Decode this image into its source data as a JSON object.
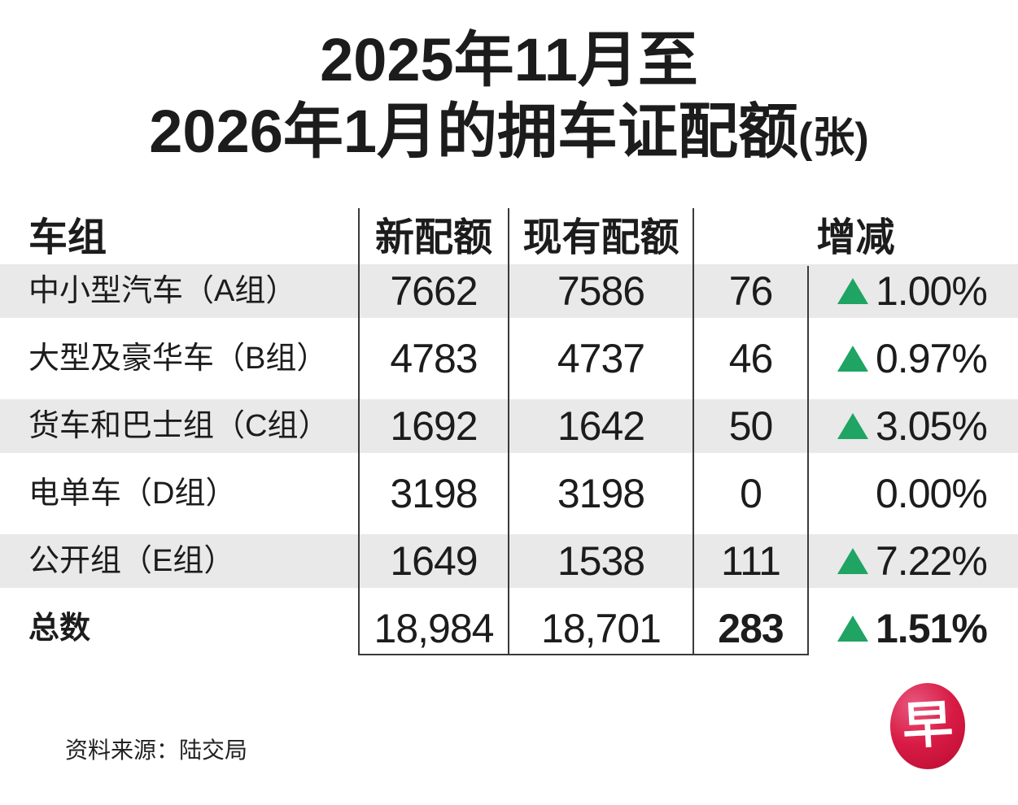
{
  "title": {
    "line1": "2025年11月至",
    "line2_main": "2026年1月的拥车证配额",
    "line2_suffix": "(张)"
  },
  "table": {
    "headers": {
      "group": "车组",
      "new_quota": "新配额",
      "existing_quota": "现有配额",
      "change": "增减"
    },
    "rows": [
      {
        "label": "中小型汽车（A组）",
        "new": "7662",
        "existing": "7586",
        "diff": "76",
        "pct": "1.00%",
        "up": true
      },
      {
        "label": "大型及豪华车（B组）",
        "new": "4783",
        "existing": "4737",
        "diff": "46",
        "pct": "0.97%",
        "up": true
      },
      {
        "label": "货车和巴士组（C组）",
        "new": "1692",
        "existing": "1642",
        "diff": "50",
        "pct": "3.05%",
        "up": true
      },
      {
        "label": "电单车（D组）",
        "new": "3198",
        "existing": "3198",
        "diff": "0",
        "pct": "0.00%",
        "up": false
      },
      {
        "label": "公开组（E组）",
        "new": "1649",
        "existing": "1538",
        "diff": "111",
        "pct": "7.22%",
        "up": true
      },
      {
        "label": "总数",
        "new": "18,984",
        "existing": "18,701",
        "diff": "283",
        "pct": "1.51%",
        "up": true
      }
    ]
  },
  "footer": {
    "source": "资料来源：陆交局"
  },
  "logo": {
    "char": "早"
  },
  "colors": {
    "text": "#1c1c1c",
    "accent_green": "#1fa463",
    "logo_red": "#cf1237",
    "row_stripe": "#e9e9e9",
    "divider": "#3a3a3a"
  },
  "chart_data": {
    "type": "table",
    "title": "2025年11月至2026年1月的拥车证配额(张)",
    "columns": [
      "车组",
      "新配额",
      "现有配额",
      "增减"
    ],
    "rows": [
      {
        "group": "中小型汽车（A组）",
        "new_quota": 7662,
        "existing_quota": 7586,
        "diff": 76,
        "pct_change": 1.0,
        "direction": "up"
      },
      {
        "group": "大型及豪华车（B组）",
        "new_quota": 4783,
        "existing_quota": 4737,
        "diff": 46,
        "pct_change": 0.97,
        "direction": "up"
      },
      {
        "group": "货车和巴士组（C组）",
        "new_quota": 1692,
        "existing_quota": 1642,
        "diff": 50,
        "pct_change": 3.05,
        "direction": "up"
      },
      {
        "group": "电单车（D组）",
        "new_quota": 3198,
        "existing_quota": 3198,
        "diff": 0,
        "pct_change": 0.0,
        "direction": "flat"
      },
      {
        "group": "公开组（E组）",
        "new_quota": 1649,
        "existing_quota": 1538,
        "diff": 111,
        "pct_change": 7.22,
        "direction": "up"
      },
      {
        "group": "总数",
        "new_quota": 18984,
        "existing_quota": 18701,
        "diff": 283,
        "pct_change": 1.51,
        "direction": "up"
      }
    ],
    "source": "资料来源：陆交局",
    "legend_position": "none",
    "grid": "column-dividers"
  }
}
